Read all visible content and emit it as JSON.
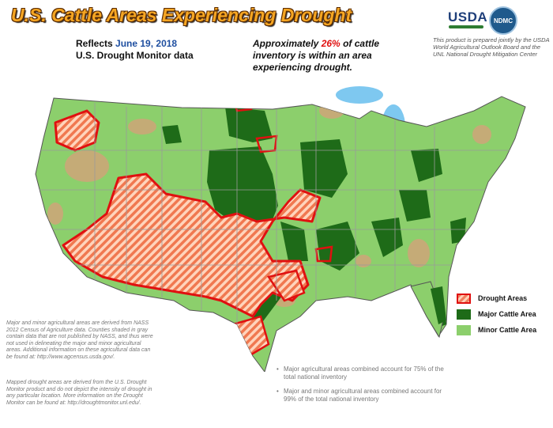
{
  "title": "U.S. Cattle Areas Experiencing Drought",
  "reflects": {
    "line1_prefix": "Reflects ",
    "date": "June 19, 2018",
    "line2": "U.S. Drought Monitor data"
  },
  "approx": {
    "prefix": "Approximately ",
    "percent": "26%",
    "suffix": " of cattle inventory is within an area experiencing drought."
  },
  "logos": {
    "usda": "USDA",
    "ndmc": "NDMC"
  },
  "disclaimer": "This product is prepared jointly by the USDA World Agricultural Outlook Board and the UNL National Drought Mitigation Center",
  "legend": {
    "items": [
      {
        "label": "Drought Areas",
        "color": "#e01010"
      },
      {
        "label": "Major Cattle Area",
        "color": "#1e6b18"
      },
      {
        "label": "Minor Cattle Area",
        "color": "#8ccf6c"
      }
    ]
  },
  "notes": {
    "left1": "Major and minor agricultural areas are derived from NASS 2012 Census of Agriculture data. Counties shaded in gray contain data that are not published by NASS, and thus were not used in delineating the major and minor agricultural areas. Additional information on these agricultural data can be found at: http://www.agcensus.usda.gov/.",
    "left2": "Mapped drought areas are derived from the U.S. Drought Monitor product and do not depict the intensity of drought in any particular location. More information on the Drought Monitor can be found at: http://droughtmonitor.unl.edu/.",
    "bullet": "•",
    "right": [
      "Major agricultural areas combined account for 75% of the total national inventory",
      "Major and minor agricultural areas combined account for 99% of the total national inventory"
    ]
  },
  "colors": {
    "water": "#7ec8f0",
    "state_lines": "#9a9a9a",
    "non_ag": "#c8a978",
    "major": "#1e6b18",
    "minor": "#8ccf6c",
    "drought_outline": "#e01010"
  }
}
